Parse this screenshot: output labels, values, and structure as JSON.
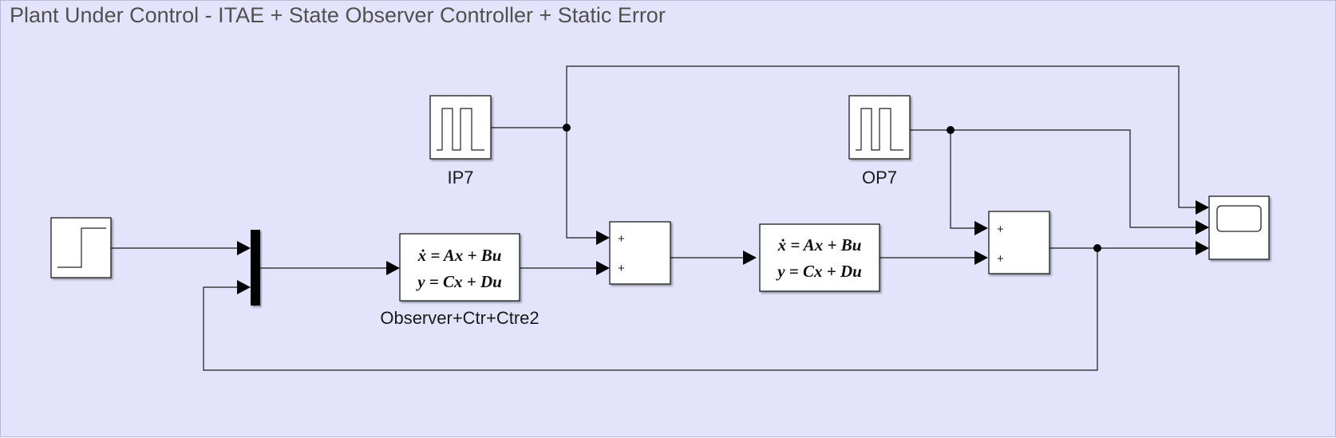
{
  "diagram": {
    "title": "Plant Under Control - ITAE + State Observer Controller + Static Error",
    "blocks": {
      "step": {
        "type": "Step",
        "icon": "step-function-icon"
      },
      "mux": {
        "type": "Mux",
        "inputs": 2
      },
      "observer": {
        "type": "State-Space",
        "label": "Observer+Ctr+Ctre2",
        "eq_line1": "ẋ = Ax + Bu",
        "eq_line2": "y = Cx + Du"
      },
      "ip7": {
        "type": "Pulse Generator",
        "label": "IP7",
        "icon": "pulse-wave-icon"
      },
      "sum1": {
        "type": "Sum",
        "signs": [
          "+",
          "+"
        ]
      },
      "plant": {
        "type": "State-Space",
        "eq_line1": "ẋ = Ax + Bu",
        "eq_line2": "y = Cx + Du"
      },
      "op7": {
        "type": "Pulse Generator",
        "label": "OP7",
        "icon": "pulse-wave-icon"
      },
      "sum2": {
        "type": "Sum",
        "signs": [
          "+",
          "+"
        ]
      },
      "scope": {
        "type": "Scope",
        "inputs": 3,
        "icon": "scope-screen-icon"
      }
    },
    "colors": {
      "background": "#e3e4fb",
      "block_fill": "#ffffff",
      "line": "#1a1a1a"
    }
  }
}
